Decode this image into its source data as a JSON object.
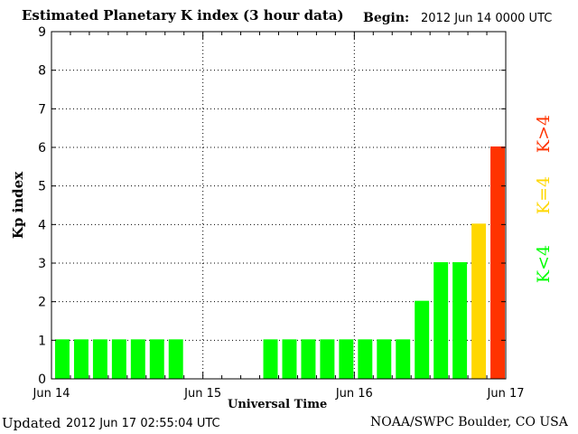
{
  "header": {
    "title": "Estimated Planetary K index (3 hour data)",
    "begin_label": "Begin:",
    "begin_value": "2012 Jun 14 0000 UTC"
  },
  "footer": {
    "updated_label": "Updated",
    "updated_value": "2012 Jun 17 02:55:04 UTC",
    "credit": "NOAA/SWPC Boulder, CO USA"
  },
  "legend": {
    "high": "K>4",
    "eq": "K=4",
    "low": "K<4"
  },
  "colors": {
    "low": "#00ff00",
    "eq": "#ffd700",
    "high": "#ff3300",
    "grid": "#000000"
  },
  "chart_data": {
    "type": "bar",
    "title": "Estimated Planetary K index (3 hour data)",
    "xlabel": "Universal Time",
    "ylabel": "Kp index",
    "ylim": [
      0,
      9
    ],
    "yticks": [
      0,
      1,
      2,
      3,
      4,
      5,
      6,
      7,
      8,
      9
    ],
    "xticks": [
      "Jun 14",
      "Jun 15",
      "Jun 16",
      "Jun 17"
    ],
    "grid": true,
    "interval_hours": 3,
    "values": [
      1,
      1,
      1,
      1,
      1,
      1,
      1,
      null,
      null,
      null,
      null,
      1,
      1,
      1,
      1,
      1,
      1,
      1,
      1,
      2,
      3,
      3,
      4,
      6
    ]
  }
}
